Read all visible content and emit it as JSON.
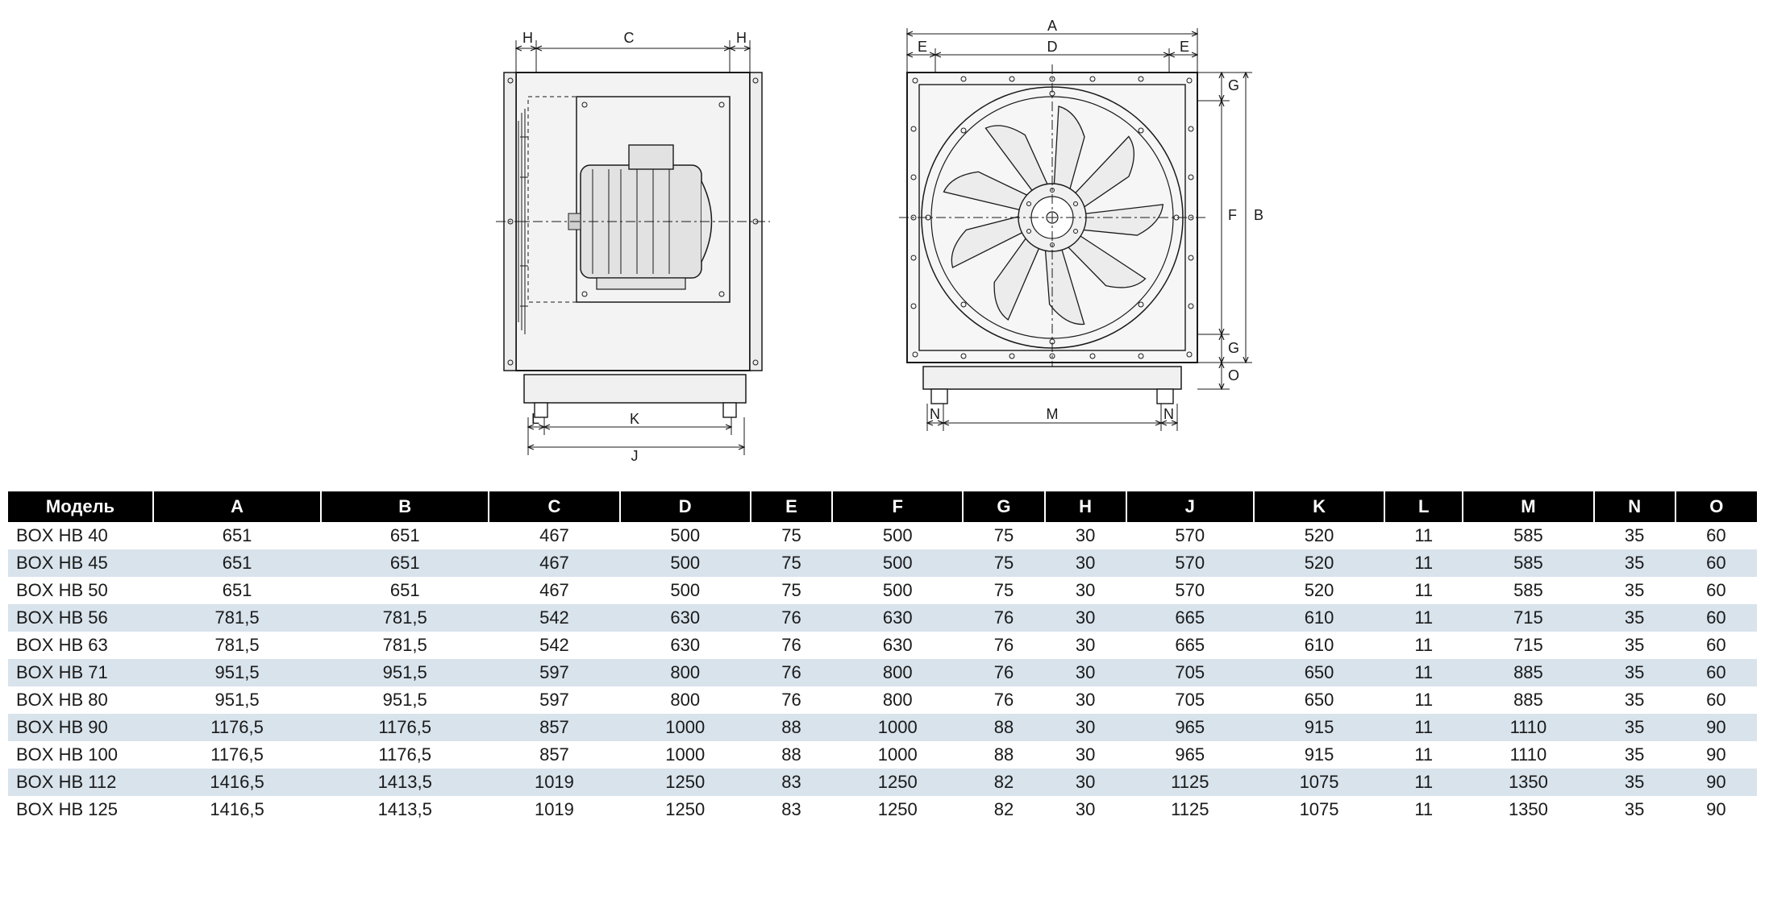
{
  "diagram": {
    "side_view": {
      "labels": [
        "H",
        "C",
        "H",
        "L",
        "K",
        "J",
        "B"
      ]
    },
    "front_view": {
      "labels": [
        "A",
        "E",
        "D",
        "E",
        "G",
        "F",
        "G",
        "O",
        "N",
        "M",
        "N"
      ]
    },
    "stroke": "#1a1a1a",
    "fill_light": "#f3f3f3",
    "fill_mid": "#dcdcdc"
  },
  "table": {
    "header_bg": "#000000",
    "header_fg": "#ffffff",
    "row_odd_bg": "#ffffff",
    "row_even_bg": "#d8e3ec",
    "text_color": "#1a1a1a",
    "fontsize": 22,
    "columns": [
      "Модель",
      "A",
      "B",
      "C",
      "D",
      "E",
      "F",
      "G",
      "H",
      "J",
      "K",
      "L",
      "M",
      "N",
      "O"
    ],
    "rows": [
      [
        "BOX HB 40",
        "651",
        "651",
        "467",
        "500",
        "75",
        "500",
        "75",
        "30",
        "570",
        "520",
        "11",
        "585",
        "35",
        "60"
      ],
      [
        "BOX HB 45",
        "651",
        "651",
        "467",
        "500",
        "75",
        "500",
        "75",
        "30",
        "570",
        "520",
        "11",
        "585",
        "35",
        "60"
      ],
      [
        "BOX HB 50",
        "651",
        "651",
        "467",
        "500",
        "75",
        "500",
        "75",
        "30",
        "570",
        "520",
        "11",
        "585",
        "35",
        "60"
      ],
      [
        "BOX HB 56",
        "781,5",
        "781,5",
        "542",
        "630",
        "76",
        "630",
        "76",
        "30",
        "665",
        "610",
        "11",
        "715",
        "35",
        "60"
      ],
      [
        "BOX HB 63",
        "781,5",
        "781,5",
        "542",
        "630",
        "76",
        "630",
        "76",
        "30",
        "665",
        "610",
        "11",
        "715",
        "35",
        "60"
      ],
      [
        "BOX HB 71",
        "951,5",
        "951,5",
        "597",
        "800",
        "76",
        "800",
        "76",
        "30",
        "705",
        "650",
        "11",
        "885",
        "35",
        "60"
      ],
      [
        "BOX HB 80",
        "951,5",
        "951,5",
        "597",
        "800",
        "76",
        "800",
        "76",
        "30",
        "705",
        "650",
        "11",
        "885",
        "35",
        "60"
      ],
      [
        "BOX HB 90",
        "1176,5",
        "1176,5",
        "857",
        "1000",
        "88",
        "1000",
        "88",
        "30",
        "965",
        "915",
        "11",
        "1110",
        "35",
        "90"
      ],
      [
        "BOX HB 100",
        "1176,5",
        "1176,5",
        "857",
        "1000",
        "88",
        "1000",
        "88",
        "30",
        "965",
        "915",
        "11",
        "1110",
        "35",
        "90"
      ],
      [
        "BOX HB 112",
        "1416,5",
        "1413,5",
        "1019",
        "1250",
        "83",
        "1250",
        "82",
        "30",
        "1125",
        "1075",
        "11",
        "1350",
        "35",
        "90"
      ],
      [
        "BOX HB 125",
        "1416,5",
        "1413,5",
        "1019",
        "1250",
        "83",
        "1250",
        "82",
        "30",
        "1125",
        "1075",
        "11",
        "1350",
        "35",
        "90"
      ]
    ]
  }
}
